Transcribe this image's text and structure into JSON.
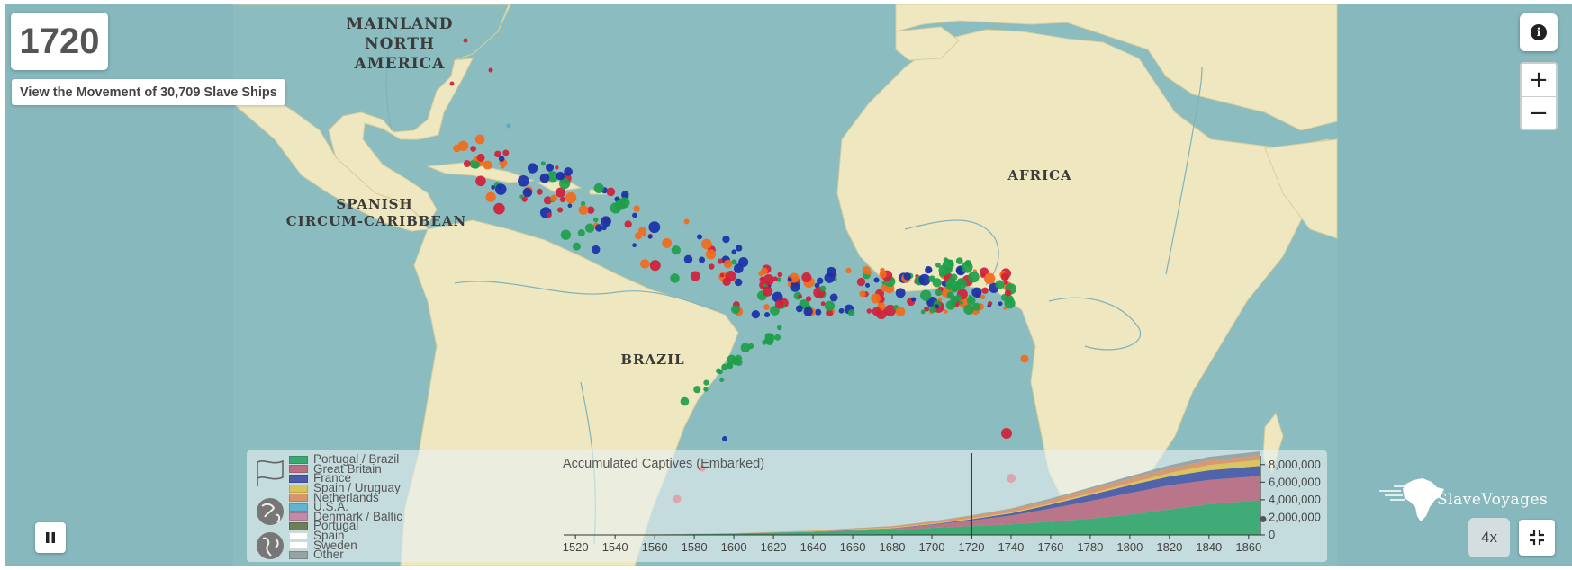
{
  "year": "1720",
  "movement_link": "View the Movement of 30,709 Slave Ships",
  "map_labels": {
    "mainland_north_america": [
      "MAINLAND",
      "NORTH",
      "AMERICA"
    ],
    "spanish_circum_caribbean": [
      "SPANISH",
      "CIRCUM-CARIBBEAN"
    ],
    "africa": "AFRICA",
    "brazil": "BRAZIL"
  },
  "controls": {
    "zoom_in": "+",
    "zoom_out": "−",
    "info": "i",
    "speed": "4x"
  },
  "icons": [
    "info-icon",
    "pause-icon",
    "fullscreen-exit-icon",
    "flag-icon",
    "globe-icon",
    "globe-americas-icon"
  ],
  "logo_text": "SlaveVoyages",
  "flag_colors": {
    "Portugal / Brazil": "#1e9e4a",
    "Great Britain": "#d0203a",
    "France": "#1a2fa8",
    "Spain / Uruguay": "#e0c63a",
    "Netherlands": "#f26a1b",
    "U.S.A.": "#52a7c8",
    "Denmark / Baltic": "#b44fa0",
    "Portugal": "#556b3b",
    "Spain": "#ffffff",
    "Sweden": "#ffffff",
    "Other": "#8a9a9a"
  },
  "legend": [
    {
      "label": "Portugal / Brazil",
      "color": "#3aa872"
    },
    {
      "label": "Great Britain",
      "color": "#b86f84"
    },
    {
      "label": "France",
      "color": "#4a5ca8"
    },
    {
      "label": "Spain / Uruguay",
      "color": "#d9c45a"
    },
    {
      "label": "Netherlands",
      "color": "#d9956a"
    },
    {
      "label": "U.S.A.",
      "color": "#62b3cf"
    },
    {
      "label": "Denmark / Baltic",
      "color": "#c08aa8"
    },
    {
      "label": "Portugal",
      "color": "#6d7f58"
    },
    {
      "label": "Spain",
      "color": "#ffffff"
    },
    {
      "label": "Sweden",
      "color": "#ffffff"
    },
    {
      "label": "Other",
      "color": "#95a3a3"
    }
  ],
  "chart_data": {
    "type": "area",
    "title": "Accumulated Captives (Embarked)",
    "xlim": [
      1514,
      1866
    ],
    "ylim": [
      0,
      9000000
    ],
    "x_ticks": [
      1520,
      1540,
      1560,
      1580,
      1600,
      1620,
      1640,
      1660,
      1680,
      1700,
      1720,
      1740,
      1760,
      1780,
      1800,
      1820,
      1840,
      1860
    ],
    "y_ticks": [
      0,
      2000000,
      4000000,
      6000000,
      8000000
    ],
    "y_tick_labels": [
      "0",
      "2,000,000",
      "4,000,000",
      "6,000,000",
      "8,000,000"
    ],
    "current_year": 1720,
    "x": [
      1514,
      1560,
      1600,
      1640,
      1680,
      1700,
      1720,
      1740,
      1760,
      1780,
      1800,
      1820,
      1840,
      1866
    ],
    "series": [
      {
        "name": "Portugal / Brazil",
        "color": "#3aa872",
        "values": [
          0,
          50000,
          150000,
          350000,
          600000,
          800000,
          1000000,
          1200000,
          1500000,
          1850000,
          2300000,
          2900000,
          3500000,
          3950000
        ]
      },
      {
        "name": "Great Britain",
        "color": "#b86f84",
        "values": [
          0,
          5000,
          10000,
          30000,
          150000,
          350000,
          650000,
          1000000,
          1500000,
          2000000,
          2450000,
          2750000,
          2750000,
          2750000
        ]
      },
      {
        "name": "France",
        "color": "#4a5ca8",
        "values": [
          0,
          0,
          0,
          5000,
          20000,
          60000,
          130000,
          250000,
          450000,
          700000,
          900000,
          1000000,
          1100000,
          1150000
        ]
      },
      {
        "name": "Spain / Uruguay",
        "color": "#d9c45a",
        "values": [
          0,
          10000,
          30000,
          60000,
          80000,
          90000,
          100000,
          120000,
          140000,
          170000,
          230000,
          400000,
          600000,
          700000
        ]
      },
      {
        "name": "Netherlands",
        "color": "#d9956a",
        "values": [
          0,
          0,
          0,
          50000,
          150000,
          220000,
          280000,
          340000,
          400000,
          460000,
          500000,
          520000,
          530000,
          530000
        ]
      },
      {
        "name": "Other",
        "color": "#95a3a3",
        "values": [
          0,
          0,
          0,
          5000,
          15000,
          30000,
          60000,
          100000,
          150000,
          220000,
          300000,
          360000,
          400000,
          430000
        ]
      }
    ]
  }
}
